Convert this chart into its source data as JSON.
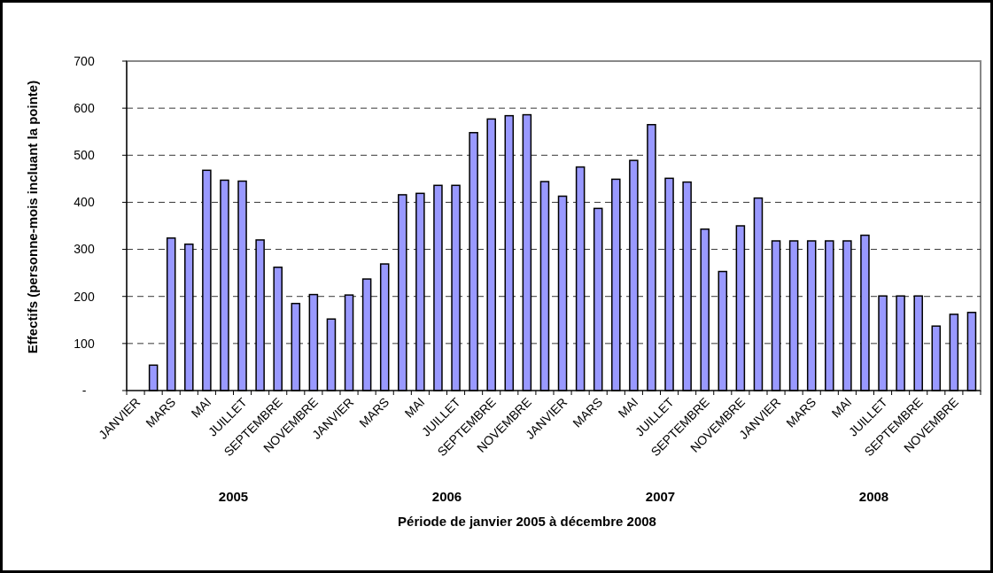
{
  "chart_data": {
    "type": "bar",
    "xlabel": "Période de janvier 2005 à décembre 2008",
    "ylabel": "Effectifs (personne-mois incluant la pointe)",
    "categories": [
      "JANVIER",
      null,
      "MARS",
      null,
      "MAI",
      null,
      "JUILLET",
      null,
      "SEPTEMBRE",
      null,
      "NOVEMBRE",
      null,
      "JANVIER",
      null,
      "MARS",
      null,
      "MAI",
      null,
      "JUILLET",
      null,
      "SEPTEMBRE",
      null,
      "NOVEMBRE",
      null,
      "JANVIER",
      null,
      "MARS",
      null,
      "MAI",
      null,
      "JUILLET",
      null,
      "SEPTEMBRE",
      null,
      "NOVEMBRE",
      null,
      "JANVIER",
      null,
      "MARS",
      null,
      "MAI",
      null,
      "JUILLET",
      null,
      "SEPTEMBRE",
      null,
      "NOVEMBRE",
      null
    ],
    "values": [
      0,
      54,
      324,
      311,
      468,
      447,
      445,
      320,
      262,
      185,
      204,
      152,
      203,
      237,
      269,
      416,
      419,
      436,
      436,
      548,
      577,
      584,
      586,
      444,
      413,
      475,
      387,
      449,
      489,
      565,
      451,
      443,
      343,
      253,
      350,
      409,
      318,
      318,
      318,
      318,
      318,
      330,
      201,
      201,
      201,
      137,
      162,
      166
    ],
    "color": "#9999ff",
    "ylim": [
      0,
      700
    ],
    "yticks": [
      {
        "value": 0,
        "label": "-"
      },
      100,
      200,
      300,
      400,
      500,
      600,
      700
    ],
    "grid": "y",
    "annotations": [
      "2005",
      "2006",
      "2007",
      "2008"
    ]
  }
}
